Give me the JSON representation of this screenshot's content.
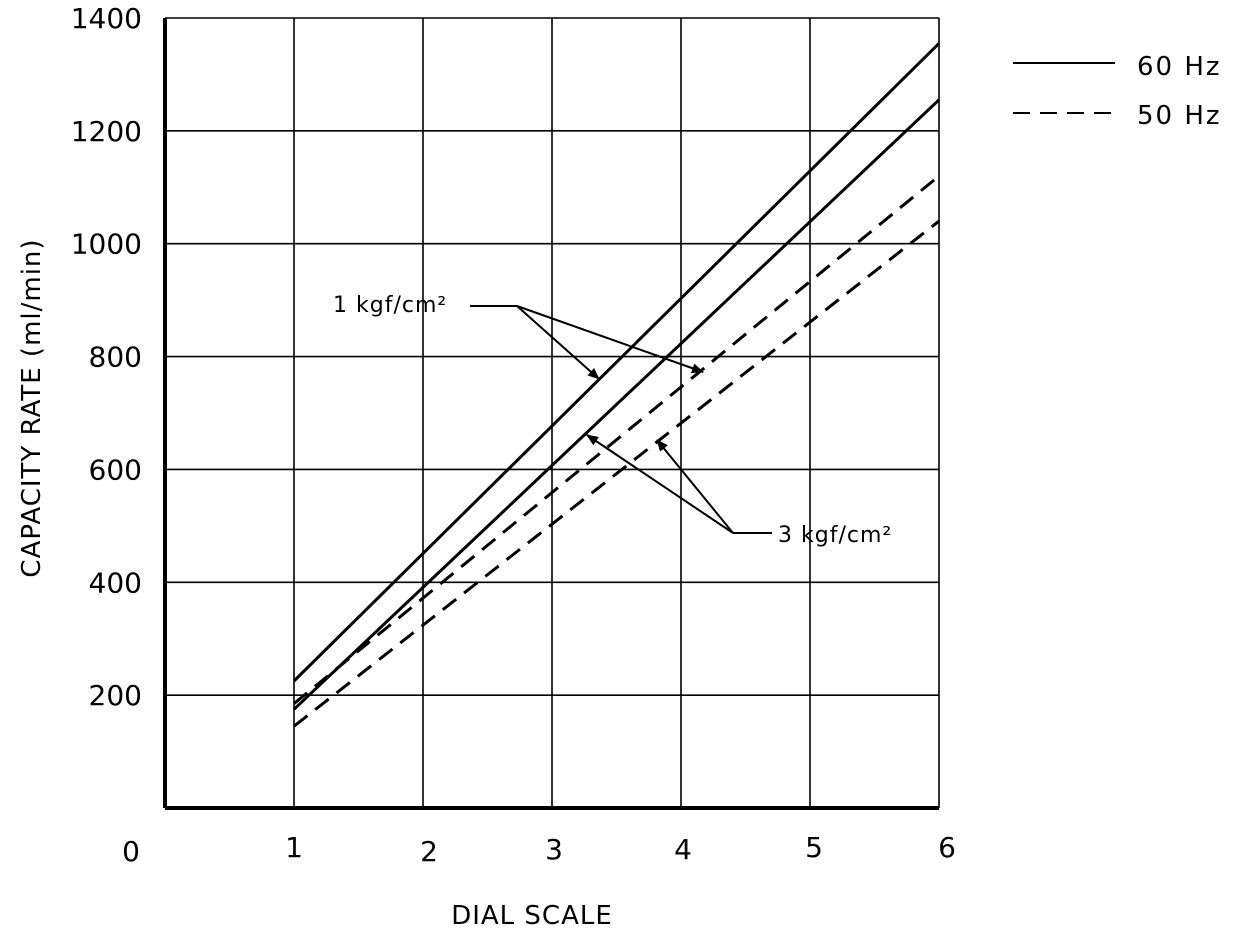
{
  "chart_data": {
    "type": "line",
    "xlabel": "DIAL SCALE",
    "ylabel": "CAPACITY RATE (ml/min)",
    "xlim": [
      0,
      6
    ],
    "ylim": [
      0,
      1400
    ],
    "x_ticks": [
      "0",
      "1",
      "2",
      "3",
      "4",
      "5",
      "6"
    ],
    "y_ticks": [
      "200",
      "400",
      "600",
      "800",
      "1000",
      "1200",
      "1400"
    ],
    "grid": true,
    "legend": {
      "placement": "top-right, outside plot",
      "entries": [
        {
          "label": "60 Hz",
          "style": "solid"
        },
        {
          "label": "50 Hz",
          "style": "dashed"
        }
      ]
    },
    "annotations": [
      {
        "text": "1 kgf/cm²",
        "targets": [
          "60 Hz 1 kgf/cm²",
          "50 Hz 1 kgf/cm²"
        ]
      },
      {
        "text": "3 kgf/cm²",
        "targets": [
          "60 Hz 3 kgf/cm²",
          "50 Hz 3 kgf/cm²"
        ]
      }
    ],
    "series": [
      {
        "condition": "60 Hz 1 kgf/cm²",
        "style": "solid",
        "x": [
          1,
          6
        ],
        "y": [
          225,
          1355
        ]
      },
      {
        "condition": "60 Hz 3 kgf/cm²",
        "style": "solid",
        "x": [
          1,
          6
        ],
        "y": [
          175,
          1255
        ]
      },
      {
        "condition": "50 Hz 1 kgf/cm²",
        "style": "dashed",
        "x": [
          1,
          6
        ],
        "y": [
          185,
          1120
        ]
      },
      {
        "condition": "50 Hz 3 kgf/cm²",
        "style": "dashed",
        "x": [
          1,
          6
        ],
        "y": [
          145,
          1040
        ]
      }
    ]
  }
}
